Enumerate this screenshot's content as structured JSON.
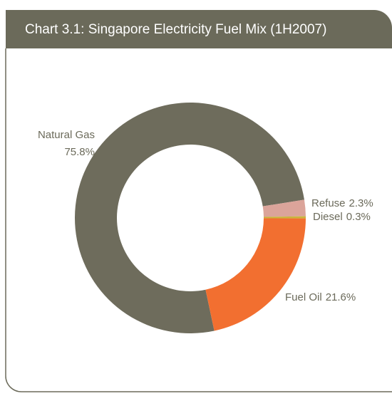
{
  "chart_data": {
    "type": "donut",
    "title": "Chart 3.1: Singapore Electricity Fuel Mix (1H2007)",
    "categories": [
      "Natural Gas",
      "Refuse",
      "Diesel",
      "Fuel Oil"
    ],
    "values": [
      75.8,
      2.3,
      0.3,
      21.6
    ],
    "value_labels": [
      "75.8%",
      "2.3%",
      "0.3%",
      "21.6%"
    ],
    "colors": [
      "#6e6c5c",
      "#dba49a",
      "#c9b43c",
      "#f26f30"
    ]
  }
}
